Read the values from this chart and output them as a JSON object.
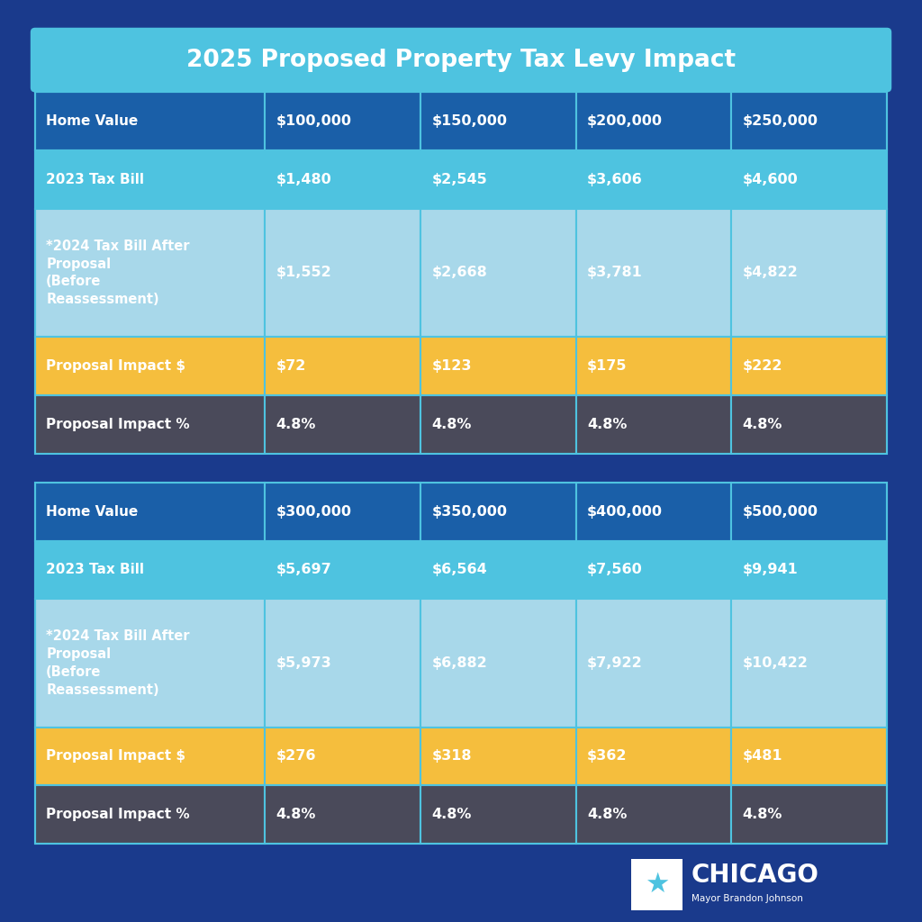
{
  "title": "2025 Proposed Property Tax Levy Impact",
  "background_color": "#1a3a8c",
  "title_bg_color": "#4ec3e0",
  "title_text_color": "#ffffff",
  "table_border_color": "#4ec3e0",
  "table1": {
    "rows": [
      {
        "label": "Home Value",
        "values": [
          "$100,000",
          "$150,000",
          "$200,000",
          "$250,000"
        ],
        "row_bg": "#1a5fa8",
        "label_bg": "#1a5fa8",
        "text_color": "#ffffff"
      },
      {
        "label": "2023 Tax Bill",
        "values": [
          "$1,480",
          "$2,545",
          "$3,606",
          "$4,600"
        ],
        "row_bg": "#4ec3e0",
        "label_bg": "#4ec3e0",
        "text_color": "#ffffff"
      },
      {
        "label": "*2024 Tax Bill After\nProposal\n(Before\nReassessment)",
        "values": [
          "$1,552",
          "$2,668",
          "$3,781",
          "$4,822"
        ],
        "row_bg": "#a8d8ea",
        "label_bg": "#a8d8ea",
        "text_color": "#ffffff"
      },
      {
        "label": "Proposal Impact $",
        "values": [
          "$72",
          "$123",
          "$175",
          "$222"
        ],
        "row_bg": "#f5be3d",
        "label_bg": "#f5be3d",
        "text_color": "#ffffff"
      },
      {
        "label": "Proposal Impact %",
        "values": [
          "4.8%",
          "4.8%",
          "4.8%",
          "4.8%"
        ],
        "row_bg": "#4a4a5a",
        "label_bg": "#4a4a5a",
        "text_color": "#ffffff"
      }
    ]
  },
  "table2": {
    "rows": [
      {
        "label": "Home Value",
        "values": [
          "$300,000",
          "$350,000",
          "$400,000",
          "$500,000"
        ],
        "row_bg": "#1a5fa8",
        "label_bg": "#1a5fa8",
        "text_color": "#ffffff"
      },
      {
        "label": "2023 Tax Bill",
        "values": [
          "$5,697",
          "$6,564",
          "$7,560",
          "$9,941"
        ],
        "row_bg": "#4ec3e0",
        "label_bg": "#4ec3e0",
        "text_color": "#ffffff"
      },
      {
        "label": "*2024 Tax Bill After\nProposal\n(Before\nReassessment)",
        "values": [
          "$5,973",
          "$6,882",
          "$7,922",
          "$10,422"
        ],
        "row_bg": "#a8d8ea",
        "label_bg": "#a8d8ea",
        "text_color": "#ffffff"
      },
      {
        "label": "Proposal Impact $",
        "values": [
          "$276",
          "$318",
          "$362",
          "$481"
        ],
        "row_bg": "#f5be3d",
        "label_bg": "#f5be3d",
        "text_color": "#ffffff"
      },
      {
        "label": "Proposal Impact %",
        "values": [
          "4.8%",
          "4.8%",
          "4.8%",
          "4.8%"
        ],
        "row_bg": "#4a4a5a",
        "label_bg": "#4a4a5a",
        "text_color": "#ffffff"
      }
    ]
  },
  "chicago_logo_bg": "#ffffff",
  "chicago_star_color": "#4ec3e0",
  "chicago_text_color": "#ffffff",
  "font_name": "DejaVu Sans"
}
